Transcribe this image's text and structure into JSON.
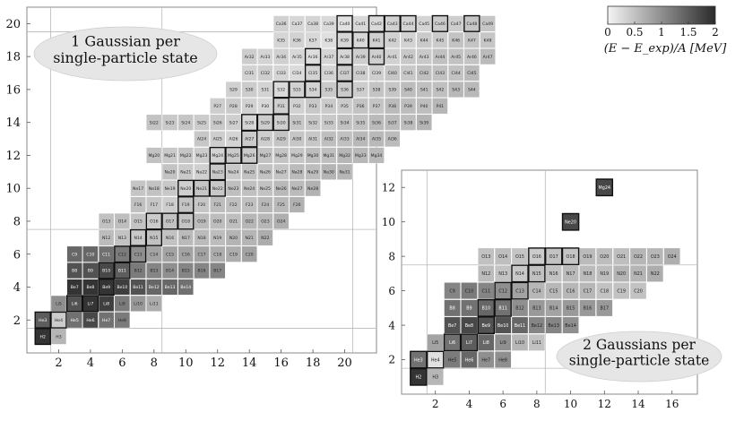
{
  "chart_data": [
    {
      "type": "heatmap",
      "title": "",
      "annotation": "1 Gaussian per single-particle state",
      "annotation_lines": [
        "1 Gaussian per",
        "single-particle state"
      ],
      "xlabel": "",
      "ylabel": "",
      "xlim": [
        0,
        22
      ],
      "ylim": [
        0,
        21
      ],
      "xticks": [
        2,
        4,
        6,
        8,
        10,
        12,
        14,
        16,
        18,
        20
      ],
      "yticks": [
        2,
        4,
        6,
        8,
        10,
        12,
        14,
        16,
        18,
        20
      ],
      "grid_lines_x": [
        1.5,
        8.5,
        20.5
      ],
      "grid_lines_y": [
        1.5,
        7.5,
        19.5
      ],
      "colorbar": {
        "min": 0,
        "max": 2,
        "ticks": [
          "0",
          "0.5",
          "1",
          "1.5",
          "2"
        ],
        "label": "(E − E_exp)/A [MeV]",
        "placement": "top-right"
      },
      "elements": [
        {
          "symbol": "H",
          "z": 1,
          "n_min": 1,
          "n_max": 2
        },
        {
          "symbol": "He",
          "z": 2,
          "n_min": 1,
          "n_max": 6
        },
        {
          "symbol": "Li",
          "z": 3,
          "n_min": 2,
          "n_max": 8
        },
        {
          "symbol": "Be",
          "z": 4,
          "n_min": 3,
          "n_max": 10
        },
        {
          "symbol": "B",
          "z": 5,
          "n_min": 3,
          "n_max": 12
        },
        {
          "symbol": "C",
          "z": 6,
          "n_min": 3,
          "n_max": 14
        },
        {
          "symbol": "N",
          "z": 7,
          "n_min": 5,
          "n_max": 15
        },
        {
          "symbol": "O",
          "z": 8,
          "n_min": 5,
          "n_max": 16
        },
        {
          "symbol": "F",
          "z": 9,
          "n_min": 7,
          "n_max": 17
        },
        {
          "symbol": "Ne",
          "z": 10,
          "n_min": 7,
          "n_max": 18
        },
        {
          "symbol": "Na",
          "z": 11,
          "n_min": 9,
          "n_max": 20
        },
        {
          "symbol": "Mg",
          "z": 12,
          "n_min": 8,
          "n_max": 22
        },
        {
          "symbol": "Al",
          "z": 13,
          "n_min": 11,
          "n_max": 23
        },
        {
          "symbol": "Si",
          "z": 14,
          "n_min": 8,
          "n_max": 25
        },
        {
          "symbol": "P",
          "z": 15,
          "n_min": 12,
          "n_max": 26
        },
        {
          "symbol": "S",
          "z": 16,
          "n_min": 13,
          "n_max": 28
        },
        {
          "symbol": "Cl",
          "z": 17,
          "n_min": 14,
          "n_max": 28
        },
        {
          "symbol": "Ar",
          "z": 18,
          "n_min": 14,
          "n_max": 29
        },
        {
          "symbol": "K",
          "z": 19,
          "n_min": 16,
          "n_max": 29
        },
        {
          "symbol": "Ca",
          "z": 20,
          "n_min": 16,
          "n_max": 29
        }
      ],
      "stable": [
        "H2",
        "He3",
        "He4",
        "Li6",
        "Li7",
        "Be9",
        "B10",
        "B11",
        "C12",
        "C13",
        "N14",
        "N15",
        "O16",
        "O17",
        "O18",
        "F19",
        "Ne20",
        "Ne21",
        "Ne22",
        "Na23",
        "Mg24",
        "Mg25",
        "Mg26",
        "Al27",
        "Si28",
        "Si29",
        "Si30",
        "P31",
        "S32",
        "S33",
        "S34",
        "S36",
        "Cl35",
        "Cl37",
        "Ar36",
        "Ar38",
        "Ar40",
        "K39",
        "K40",
        "K41",
        "Ca40",
        "Ca42",
        "Ca43",
        "Ca44",
        "Ca46",
        "Ca48"
      ],
      "dark_values": {
        "H2": 1.9,
        "He3": 1.5,
        "He4": 0.4,
        "He5": 1.3,
        "He6": 1.7,
        "He7": 1.3,
        "He8": 1.2,
        "Li5": 1.0,
        "Li6": 1.6,
        "Li7": 1.9,
        "Li8": 1.8,
        "Li9": 1.2,
        "Li10": 0.9,
        "Li11": 0.7,
        "Be6": 1.7,
        "Be7": 1.9,
        "Be8": 1.9,
        "Be9": 1.9,
        "Be10": 1.8,
        "Be11": 1.6,
        "Be12": 1.4,
        "Be13": 1.4,
        "Be14": 1.3,
        "B8": 1.6,
        "B9": 1.6,
        "B10": 1.7,
        "B11": 1.5,
        "B12": 1.2,
        "B13": 1.1,
        "B14": 1.0,
        "B15": 1.1,
        "B16": 1.1,
        "B17": 1.1,
        "C9": 1.4,
        "C10": 1.4,
        "C11": 1.3,
        "C12": 1.2,
        "C13": 1.0,
        "C14": 0.8,
        "C15": 0.8,
        "C16": 0.8,
        "C17": 0.8,
        "C18": 0.7,
        "C19": 0.7,
        "C20": 0.8
      }
    },
    {
      "type": "heatmap",
      "title": "",
      "annotation": "2 Gaussians per single-particle state",
      "annotation_lines": [
        "2 Gaussians per",
        "single-particle state"
      ],
      "xlabel": "",
      "ylabel": "",
      "xlim": [
        0,
        17.5
      ],
      "ylim": [
        0,
        13
      ],
      "xticks": [
        2,
        4,
        6,
        8,
        10,
        12,
        14,
        16
      ],
      "yticks": [
        2,
        4,
        6,
        8,
        10,
        12
      ],
      "grid_lines_x": [
        1.5,
        8.5
      ],
      "grid_lines_y": [
        1.5,
        7.5
      ],
      "elements": [
        {
          "symbol": "H",
          "z": 1,
          "n_min": 1,
          "n_max": 2
        },
        {
          "symbol": "He",
          "z": 2,
          "n_min": 1,
          "n_max": 6
        },
        {
          "symbol": "Li",
          "z": 3,
          "n_min": 2,
          "n_max": 8
        },
        {
          "symbol": "Be",
          "z": 4,
          "n_min": 3,
          "n_max": 10
        },
        {
          "symbol": "B",
          "z": 5,
          "n_min": 3,
          "n_max": 12
        },
        {
          "symbol": "C",
          "z": 6,
          "n_min": 3,
          "n_max": 14
        },
        {
          "symbol": "N",
          "z": 7,
          "n_min": 5,
          "n_max": 15
        },
        {
          "symbol": "O",
          "z": 8,
          "n_min": 5,
          "n_max": 16
        }
      ],
      "extra_cells": [
        {
          "label": "Ne20",
          "z": 10,
          "n": 10,
          "value": 1.7
        },
        {
          "label": "Mg24",
          "z": 12,
          "n": 12,
          "value": 1.7
        }
      ],
      "stable": [
        "H2",
        "He3",
        "He4",
        "Li6",
        "Li7",
        "Be9",
        "B10",
        "B11",
        "C12",
        "C13",
        "N14",
        "N15",
        "O16",
        "O17",
        "O18",
        "Ne20",
        "Mg24"
      ],
      "dark_values": {
        "H2": 1.9,
        "He3": 1.3,
        "He4": 0.2,
        "He5": 1.2,
        "He6": 1.4,
        "He7": 1.0,
        "He8": 1.0,
        "Li5": 0.8,
        "Li6": 1.3,
        "Li7": 1.5,
        "Li8": 1.4,
        "Li9": 1.0,
        "Li10": 0.6,
        "Li11": 0.5,
        "Be6": 1.4,
        "Be7": 1.6,
        "Be8": 1.7,
        "Be9": 1.6,
        "Be10": 1.6,
        "Be11": 1.4,
        "Be12": 1.1,
        "Be13": 1.1,
        "Be14": 1.0,
        "B8": 1.3,
        "B9": 1.3,
        "B10": 1.4,
        "B11": 1.3,
        "B12": 1.0,
        "B13": 0.9,
        "B14": 0.8,
        "B15": 0.9,
        "B16": 0.9,
        "B17": 0.9,
        "C9": 1.1,
        "C10": 1.2,
        "C11": 1.1,
        "C12": 1.0,
        "C13": 0.8,
        "C14": 0.6,
        "C15": 0.6,
        "C16": 0.6,
        "C17": 0.6,
        "C18": 0.5,
        "C19": 0.5,
        "C20": 0.5
      }
    }
  ],
  "colors": {
    "min": "#f4f4f4",
    "max": "#2a2a2a",
    "grid": "#b8b8b8",
    "frame": "#888888",
    "bubble": "#e6e6e6"
  }
}
